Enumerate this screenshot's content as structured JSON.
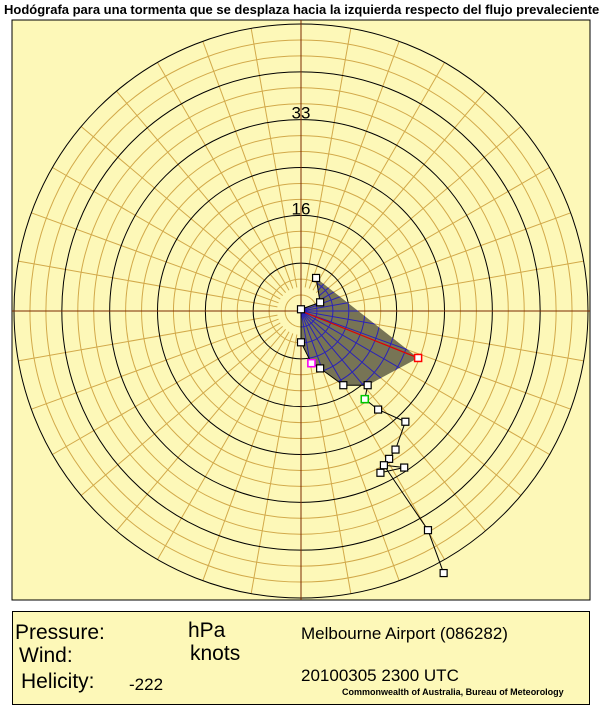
{
  "title": "Hodógrafa para una tormenta que se desplaza hacia la izquierda respecto del flujo prevaleciente",
  "colors": {
    "background": "#fdf8b8",
    "ring_minor": "#d2a94a",
    "ring_major": "#000000",
    "axis": "#7a2a00",
    "shade": "#777455",
    "mesh": "#2a22b8",
    "hodo_line": "#000000",
    "storm_vector": "#e00000",
    "marker_red": "#ff0000",
    "marker_green": "#00c800",
    "marker_magenta": "#ff00ff"
  },
  "chart_data": {
    "type": "scatter",
    "subtype": "polar hodograph",
    "title": "Hodógrafa para una tormenta que se desplaza hacia la izquierda respecto del flujo prevaleciente",
    "radial_unit": "knots",
    "radial_tick_labels": [
      "16",
      "33"
    ],
    "radial_ticks": [
      16.5,
      33
    ],
    "rings": {
      "count": 18,
      "step": 2.75,
      "major_every": 3
    },
    "spokes_deg": 10,
    "grid": true,
    "hodograph": [
      {
        "u": 0.0,
        "v": 0.3
      },
      {
        "u": 3.3,
        "v": 1.5
      },
      {
        "u": 2.6,
        "v": 5.7
      },
      {
        "u": 3.3,
        "v": 1.5
      },
      {
        "u": 0.0,
        "v": 0.3
      },
      {
        "u": 0.0,
        "v": -5.4
      },
      {
        "u": 1.8,
        "v": -9.0
      },
      {
        "u": 3.3,
        "v": -9.9
      },
      {
        "u": 7.3,
        "v": -12.8
      },
      {
        "u": 11.5,
        "v": -12.8
      },
      {
        "u": 11.0,
        "v": -15.2
      },
      {
        "u": 13.3,
        "v": -17.0
      },
      {
        "u": 18.0,
        "v": -19.1
      },
      {
        "u": 16.3,
        "v": -23.9
      },
      {
        "u": 15.2,
        "v": -25.5
      },
      {
        "u": 14.3,
        "v": -26.6
      },
      {
        "u": 17.8,
        "v": -27.0
      },
      {
        "u": 13.7,
        "v": -27.9
      },
      {
        "u": 14.3,
        "v": -26.6
      },
      {
        "u": 21.9,
        "v": -37.8
      },
      {
        "u": 24.6,
        "v": -45.2
      }
    ],
    "shaded_area": [
      {
        "u": 0.0,
        "v": 0.3
      },
      {
        "u": 3.3,
        "v": 1.5
      },
      {
        "u": 2.6,
        "v": 5.7
      },
      {
        "u": 20.2,
        "v": -8.1
      },
      {
        "u": 11.5,
        "v": -12.8
      },
      {
        "u": 7.3,
        "v": -12.8
      },
      {
        "u": 3.3,
        "v": -9.9
      },
      {
        "u": 1.8,
        "v": -9.0
      },
      {
        "u": 0.0,
        "v": -5.4
      }
    ],
    "storm_motion": {
      "u": 20.2,
      "v": -8.1
    },
    "storm_motion_label": "storm motion",
    "special_markers": [
      {
        "u": 1.8,
        "v": -9.0,
        "color": "#ff00ff"
      },
      {
        "u": 11.0,
        "v": -15.2,
        "color": "#00c800"
      }
    ]
  },
  "panel": {
    "pressure_label": "Pressure:",
    "pressure_unit": "hPa",
    "wind_label": "Wind:",
    "wind_unit": "knots",
    "helicity_label": "Helicity:",
    "helicity_value": "-222",
    "station": "Melbourne Airport (086282)",
    "datetime": "20100305 2300 UTC",
    "credit": "Commonwealth of Australia, Bureau of Meteorology"
  }
}
